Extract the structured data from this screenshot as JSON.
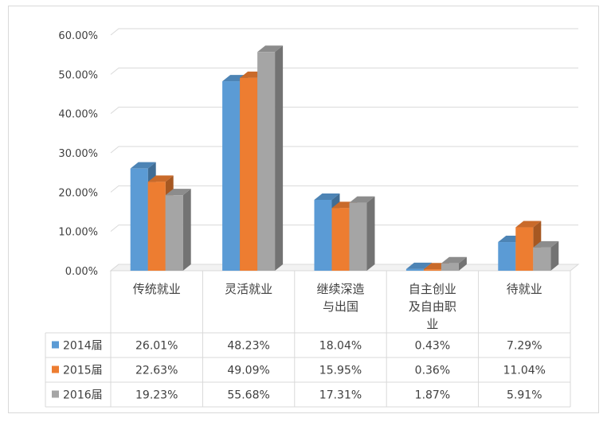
{
  "chart_data": {
    "type": "bar",
    "categories": [
      [
        "传统就业"
      ],
      [
        "灵活就业"
      ],
      [
        "继续深造",
        "与出国"
      ],
      [
        "自主创业",
        "及自由职",
        "业"
      ],
      [
        "待就业"
      ]
    ],
    "series": [
      {
        "name": "2014届",
        "values": [
          26.01,
          48.23,
          18.04,
          0.43,
          7.29
        ],
        "display": [
          "26.01%",
          "48.23%",
          "18.04%",
          "0.43%",
          "7.29%"
        ],
        "color": "#5b9bd5"
      },
      {
        "name": "2015届",
        "values": [
          22.63,
          49.09,
          15.95,
          0.36,
          11.04
        ],
        "display": [
          "22.63%",
          "49.09%",
          "15.95%",
          "0.36%",
          "11.04%"
        ],
        "color": "#ed7d31"
      },
      {
        "name": "2016届",
        "values": [
          19.23,
          55.68,
          17.31,
          1.87,
          5.91
        ],
        "display": [
          "19.23%",
          "55.68%",
          "17.31%",
          "1.87%",
          "5.91%"
        ],
        "color": "#a5a5a5"
      }
    ],
    "y_ticks": [
      "0.00%",
      "10.00%",
      "20.00%",
      "30.00%",
      "40.00%",
      "50.00%",
      "60.00%"
    ],
    "ylim": [
      0,
      60
    ],
    "grid": true,
    "data_table": true,
    "style": "3d-clustered-column"
  }
}
